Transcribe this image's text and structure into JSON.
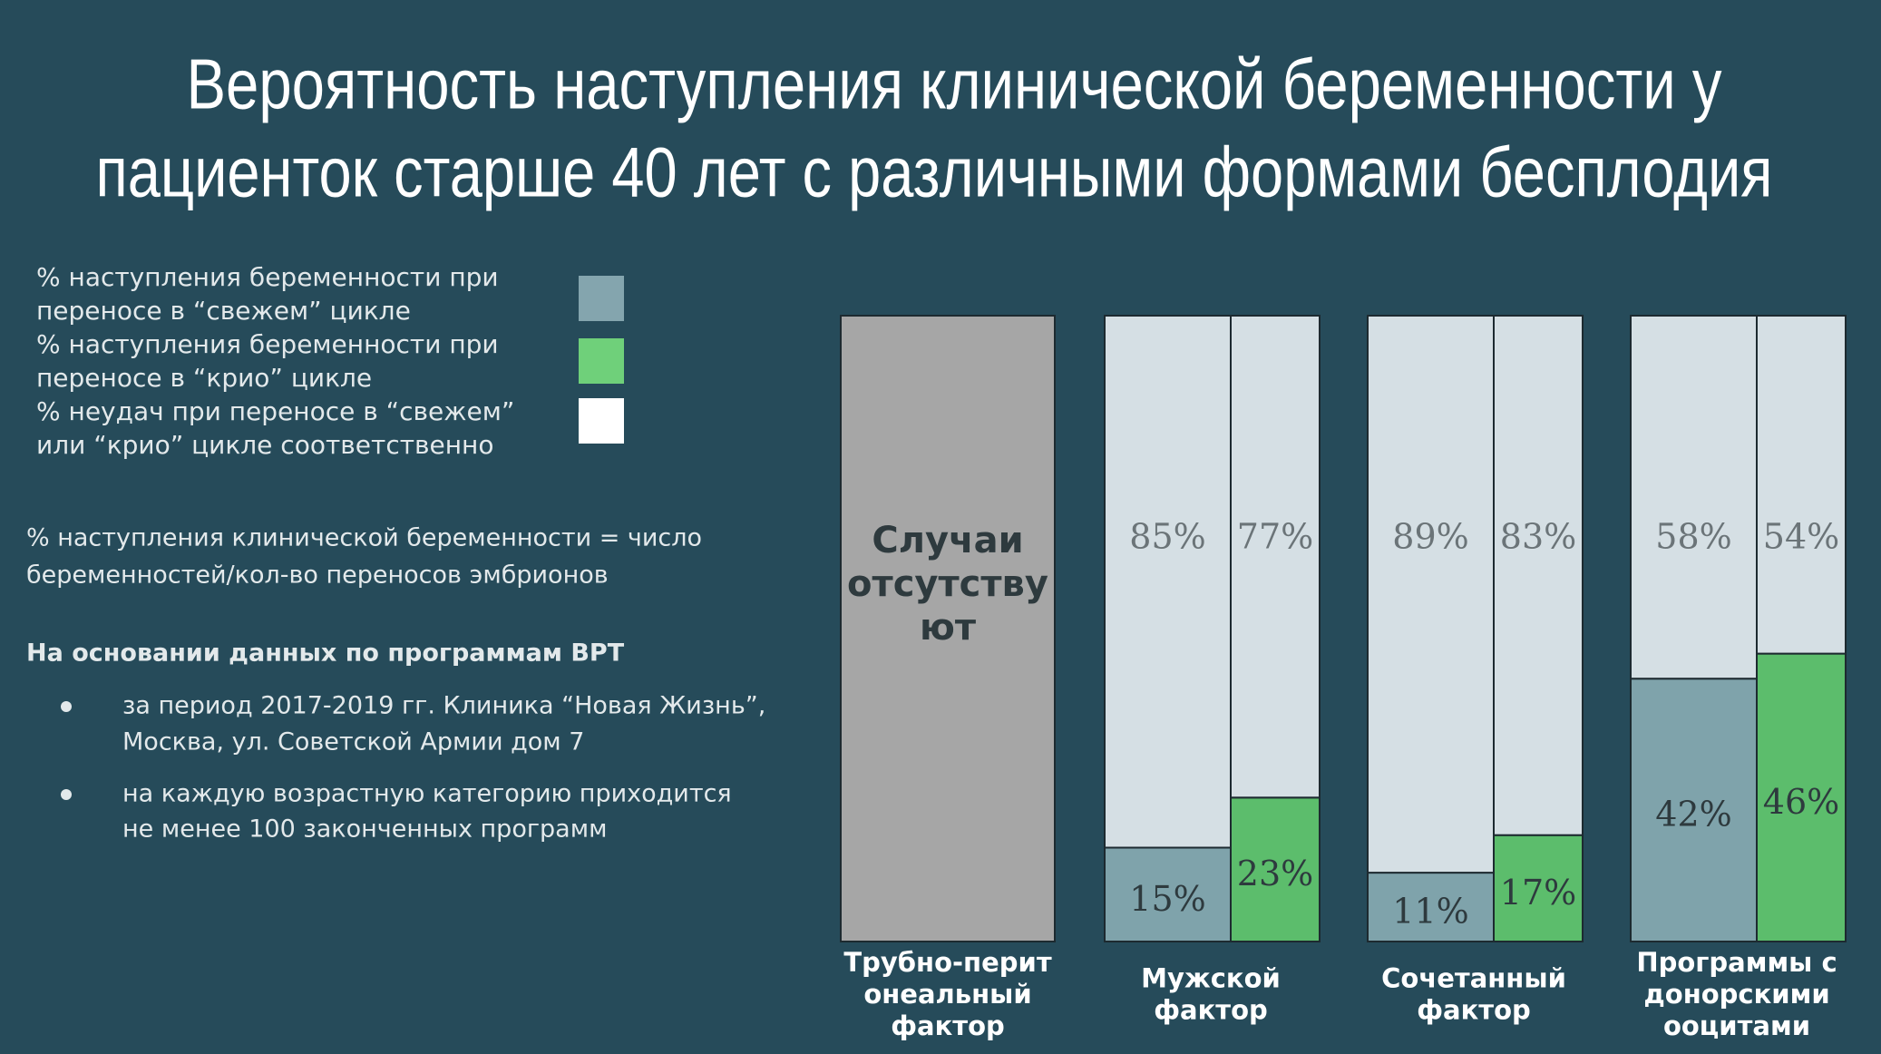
{
  "title_lines": [
    "Вероятность  наступления клинической беременности у",
    "пациенток старше 40 лет с различными формами бесплодия"
  ],
  "note_lines": [
    "% наступления клинической беременности = число",
    "беременностей/кол-во переносов эмбрионов"
  ],
  "basis": {
    "heading": "На основании данных по программам ВРТ",
    "bullets": [
      [
        "за период 2017-2019 гг. Клиника “Новая Жизнь”,",
        "Москва, ул. Советской Армии дом 7"
      ],
      [
        "на каждую возрастную категорию приходится",
        "не менее 100 законченных программ"
      ]
    ]
  },
  "chart_data": {
    "type": "bar",
    "ylim": [
      0,
      100
    ],
    "categories": [
      [
        "Трубно-перит",
        "онеальный",
        "фактор"
      ],
      [
        "Мужской",
        "фактор"
      ],
      [
        "Сочетанный",
        "фактор"
      ],
      [
        "Программы с",
        "донорскими",
        "ооцитами"
      ]
    ],
    "no_data_label": [
      "Случаи",
      "отсутству",
      "ют"
    ],
    "no_data_color": "#a6a6a6",
    "series": [
      {
        "name": [
          "% наступления беременности при",
          "переносе в “свежем” цикле"
        ],
        "color": "#7fa3ab",
        "legend_color": "#84a5ae",
        "values": [
          null,
          15,
          11,
          42
        ],
        "value_labels": [
          null,
          "15%",
          "11%",
          "42%"
        ]
      },
      {
        "name": [
          "% наступления беременности при",
          "переносе в “крио” цикле"
        ],
        "color": "#5cbd6c",
        "legend_color": "#6fd07a",
        "values": [
          null,
          23,
          17,
          46
        ],
        "value_labels": [
          null,
          "23%",
          "17%",
          "46%"
        ]
      },
      {
        "name": [
          "% неудач при переносе в “свежем”",
          "или “крио” цикле соответственно"
        ],
        "color": "#d5dfe4",
        "legend_color": "#ffffff",
        "values": [
          null,
          85,
          89,
          58
        ],
        "value_labels": [
          null,
          "85%",
          "89%",
          "58%"
        ],
        "cryo_values": [
          null,
          77,
          83,
          54
        ],
        "cryo_value_labels": [
          null,
          "77%",
          "83%",
          "54%"
        ]
      }
    ]
  }
}
